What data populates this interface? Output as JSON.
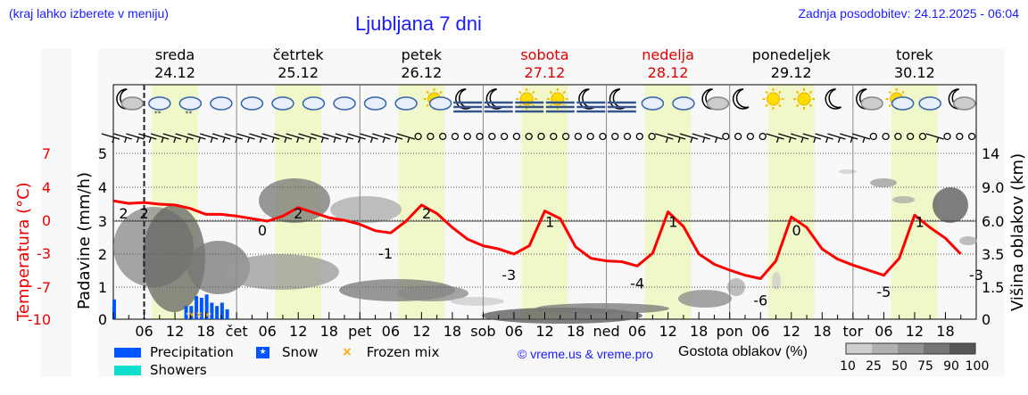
{
  "header": {
    "region_hint": "(kraj lahko izberete v meniju)",
    "title": "Ljubljana 7 dni",
    "updated": "Zadnja posodobitev: 24.12.2025 - 06:04"
  },
  "days": [
    {
      "name": "sreda",
      "date": "24.12",
      "weekend": false
    },
    {
      "name": "četrtek",
      "date": "25.12",
      "weekend": false
    },
    {
      "name": "petek",
      "date": "26.12",
      "weekend": false
    },
    {
      "name": "sobota",
      "date": "27.12",
      "weekend": true
    },
    {
      "name": "nedelja",
      "date": "28.12",
      "weekend": true
    },
    {
      "name": "ponedeljek",
      "date": "29.12",
      "weekend": false
    },
    {
      "name": "torek",
      "date": "30.12",
      "weekend": false
    }
  ],
  "axes": {
    "left_temp_label": "Temperatura (°C)",
    "left_precip_label": "Padavine (mm/h)",
    "right_label": "Višina oblakov (km)",
    "temp_ticks": [
      "7",
      "4",
      "0",
      "-3",
      "-7",
      "-10"
    ],
    "precip_ticks": [
      "5",
      "4",
      "3",
      "2",
      "1",
      "0"
    ],
    "cloud_ticks": [
      "14",
      "9.0",
      "6.0",
      "3.5",
      "1.5",
      "0"
    ],
    "x_ticks": [
      "06",
      "12",
      "18",
      "čet",
      "06",
      "12",
      "18",
      "pet",
      "06",
      "12",
      "18",
      "sob",
      "06",
      "12",
      "18",
      "ned",
      "06",
      "12",
      "18",
      "pon",
      "06",
      "12",
      "18",
      "tor",
      "06",
      "12",
      "18"
    ]
  },
  "legend": {
    "precipitation": "Precipitation",
    "showers": "Showers",
    "snow": "Snow",
    "frozen_mix": "Frozen mix",
    "copyright": "© vreme.us & vreme.pro",
    "density_label": "Gostota oblakov (%)",
    "density_ticks": [
      "10",
      "25",
      "50",
      "75",
      "90",
      "100"
    ],
    "colors": {
      "precipitation": "#0055ff",
      "showers": "#11ddcc",
      "frozen_mix": "#ffaa00",
      "temperature": "#ff0000",
      "daylight": "#f0f7c8"
    }
  },
  "icons": [
    "moon-cloud",
    "cloud-snow",
    "cloud-snow",
    "cloud",
    "cloud",
    "cloud",
    "cloud",
    "cloud",
    "cloud",
    "cloud",
    "sun-cloud",
    "moon-fog",
    "moon-fog",
    "sun-fog",
    "sun-fog",
    "moon-fog",
    "moon-fog",
    "cloud",
    "cloud",
    "moon-cloud",
    "moon",
    "sun",
    "sun",
    "moon",
    "moon-cloud",
    "sun-cloud",
    "cloud",
    "moon-cloud"
  ],
  "chart_data": {
    "type": "line",
    "title": "Ljubljana 7 dni",
    "xlabel": "",
    "ylabel": "Temperatura (°C)",
    "x": [
      "24.12 00",
      "24.12 03",
      "24.12 06",
      "24.12 09",
      "24.12 12",
      "24.12 15",
      "24.12 18",
      "24.12 21",
      "25.12 00",
      "25.12 03",
      "25.12 06",
      "25.12 09",
      "25.12 12",
      "25.12 15",
      "25.12 18",
      "25.12 21",
      "26.12 00",
      "26.12 03",
      "26.12 06",
      "26.12 09",
      "26.12 12",
      "26.12 15",
      "26.12 18",
      "26.12 21",
      "27.12 00",
      "27.12 03",
      "27.12 06",
      "27.12 09",
      "27.12 12",
      "27.12 15",
      "27.12 18",
      "27.12 21",
      "28.12 00",
      "28.12 03",
      "28.12 06",
      "28.12 09",
      "28.12 12",
      "28.12 15",
      "28.12 18",
      "28.12 21",
      "29.12 00",
      "29.12 03",
      "29.12 06",
      "29.12 09",
      "29.12 12",
      "29.12 15",
      "29.12 18",
      "29.12 21",
      "30.12 00",
      "30.12 03",
      "30.12 06",
      "30.12 09",
      "30.12 12",
      "30.12 15",
      "30.12 18",
      "30.12 21"
    ],
    "series": [
      {
        "name": "Temperatura (°C)",
        "values": [
          2.4,
          2.1,
          2.2,
          2.0,
          1.9,
          1.5,
          0.8,
          0.8,
          0.6,
          0.3,
          0.0,
          0.6,
          1.6,
          1.0,
          0.4,
          0.1,
          -0.3,
          -0.9,
          -1.1,
          0.0,
          1.9,
          0.9,
          -0.6,
          -1.7,
          -2.3,
          -2.6,
          -3.1,
          -2.3,
          1.2,
          0.3,
          -2.4,
          -3.6,
          -3.9,
          -4.0,
          -4.5,
          -3.0,
          1.1,
          -0.5,
          -3.1,
          -4.3,
          -5.0,
          -5.6,
          -6.0,
          -3.9,
          0.5,
          -0.6,
          -2.6,
          -3.7,
          -4.4,
          -5.0,
          -5.6,
          -3.6,
          0.7,
          -0.6,
          -1.6,
          -3.1
        ]
      },
      {
        "name": "Padavine (mm/h)",
        "values": [
          0.6,
          0,
          0,
          0.4,
          0.7,
          0.6,
          0.2,
          0,
          0,
          0,
          0,
          0,
          0,
          0,
          0,
          0,
          0,
          0,
          0,
          0,
          0,
          0,
          0,
          0,
          0,
          0,
          0,
          0,
          0,
          0,
          0,
          0,
          0,
          0,
          0,
          0,
          0,
          0,
          0,
          0,
          0,
          0,
          0,
          0,
          0,
          0,
          0,
          0,
          0,
          0,
          0,
          0,
          0,
          0,
          0,
          0
        ]
      }
    ],
    "temp_labels": [
      {
        "x": "24.12 02",
        "value": 2
      },
      {
        "x": "24.12 06",
        "value": 2
      },
      {
        "x": "25.12 05",
        "value": 0
      },
      {
        "x": "25.12 12",
        "value": 2
      },
      {
        "x": "26.12 05",
        "value": -1
      },
      {
        "x": "26.12 13",
        "value": 2
      },
      {
        "x": "27.12 05",
        "value": -3
      },
      {
        "x": "27.12 13",
        "value": 1
      },
      {
        "x": "28.12 06",
        "value": -4
      },
      {
        "x": "28.12 13",
        "value": 1
      },
      {
        "x": "29.12 06",
        "value": -6
      },
      {
        "x": "29.12 13",
        "value": 0
      },
      {
        "x": "30.12 06",
        "value": -5
      },
      {
        "x": "30.12 13",
        "value": 1
      },
      {
        "x": "30.12 24",
        "value": -3
      }
    ],
    "temp_axis": {
      "ticks": [
        7,
        4,
        0,
        -3,
        -7,
        -10
      ],
      "ylim": [
        -10,
        7
      ]
    },
    "precip_axis": {
      "ticks": [
        0,
        1,
        2,
        3,
        4,
        5
      ],
      "ylim": [
        0,
        5
      ]
    },
    "cloud_axis": {
      "label": "Višina oblakov (km)",
      "ticks": [
        0,
        1.5,
        3.5,
        6.0,
        9.0,
        14
      ]
    },
    "cloud_density_legend": [
      10,
      25,
      50,
      75,
      90,
      100
    ],
    "current_time_marker": "24.12 06",
    "grid": true
  }
}
